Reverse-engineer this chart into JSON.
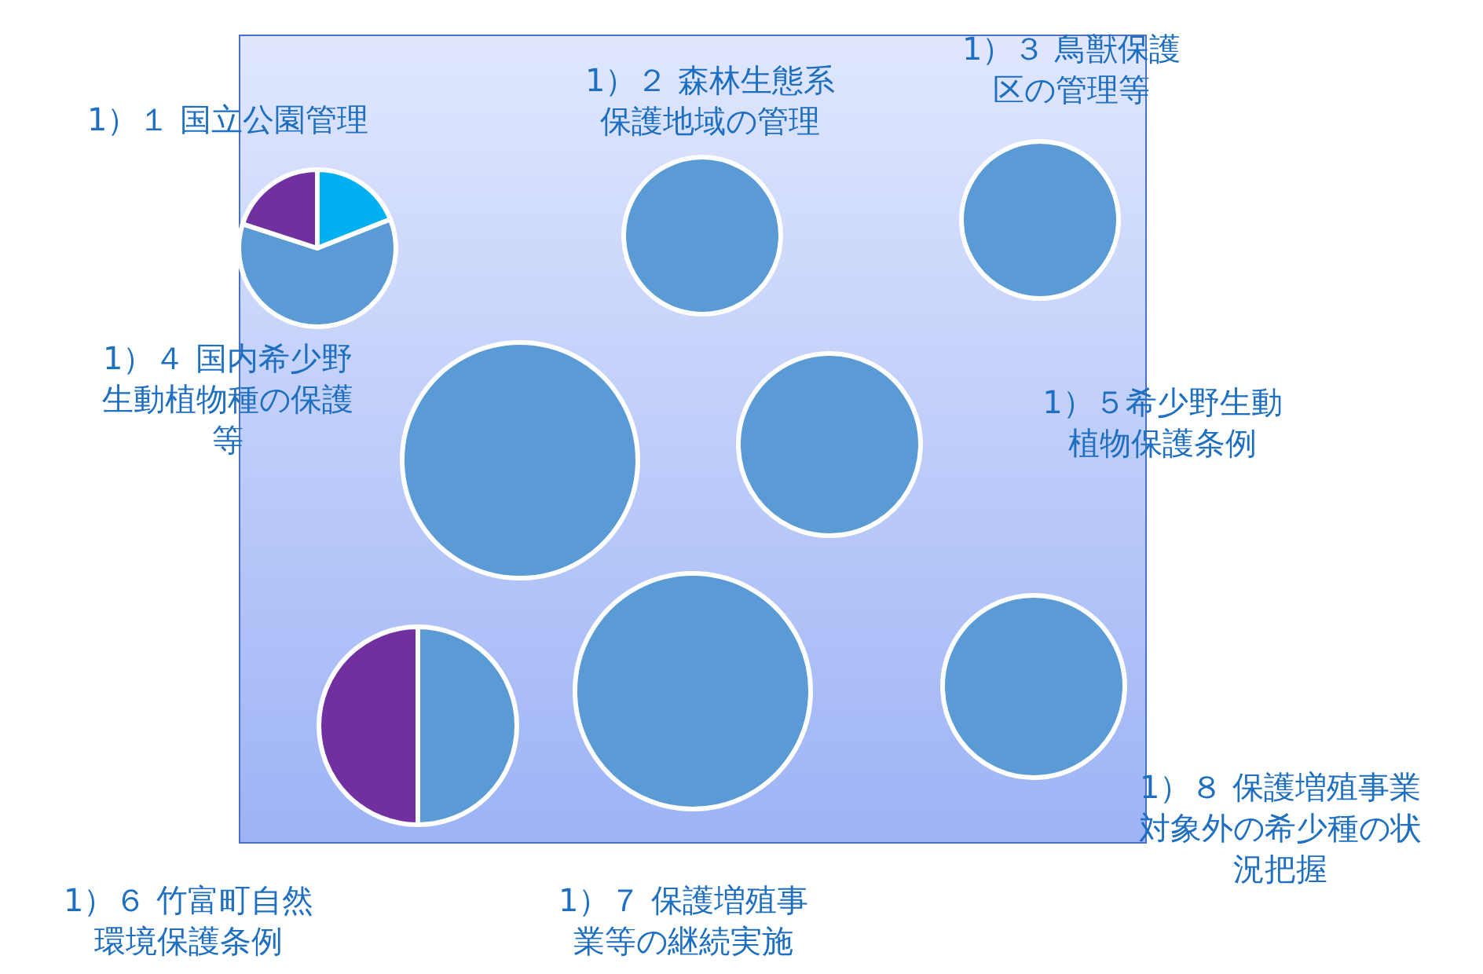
{
  "chart_data": [
    {
      "type": "pie",
      "title": "1）１ 国立公園管理",
      "categories": [
        null,
        null,
        null
      ],
      "values": [
        19,
        61,
        20
      ],
      "colors": [
        "#00b0f0",
        "#5b9bd5",
        "#7030a0"
      ]
    },
    {
      "type": "pie",
      "title": "1）２ 森林生態系保護地域の管理",
      "categories": [
        null
      ],
      "values": [
        100
      ],
      "colors": [
        "#5b9bd5"
      ]
    },
    {
      "type": "pie",
      "title": "1）３ 鳥獣保護区の管理等",
      "categories": [
        null
      ],
      "values": [
        100
      ],
      "colors": [
        "#5b9bd5"
      ]
    },
    {
      "type": "pie",
      "title": "1）４ 国内希少野生動植物種の保護等",
      "categories": [
        null
      ],
      "values": [
        100
      ],
      "colors": [
        "#5b9bd5"
      ]
    },
    {
      "type": "pie",
      "title": "1）５希少野生動植物保護条例",
      "categories": [
        null
      ],
      "values": [
        100
      ],
      "colors": [
        "#5b9bd5"
      ]
    },
    {
      "type": "pie",
      "title": "1）６ 竹富町自然環境保護条例",
      "categories": [
        null,
        null
      ],
      "values": [
        50,
        50
      ],
      "colors": [
        "#5b9bd5",
        "#7030a0"
      ]
    },
    {
      "type": "pie",
      "title": "1）７ 保護増殖事業等の継続実施",
      "categories": [
        null
      ],
      "values": [
        100
      ],
      "colors": [
        "#5b9bd5"
      ]
    },
    {
      "type": "pie",
      "title": "1）８ 保護増殖事業対象外の希少種の状況把握",
      "categories": [
        null
      ],
      "values": [
        100
      ],
      "colors": [
        "#5b9bd5"
      ]
    }
  ]
}
